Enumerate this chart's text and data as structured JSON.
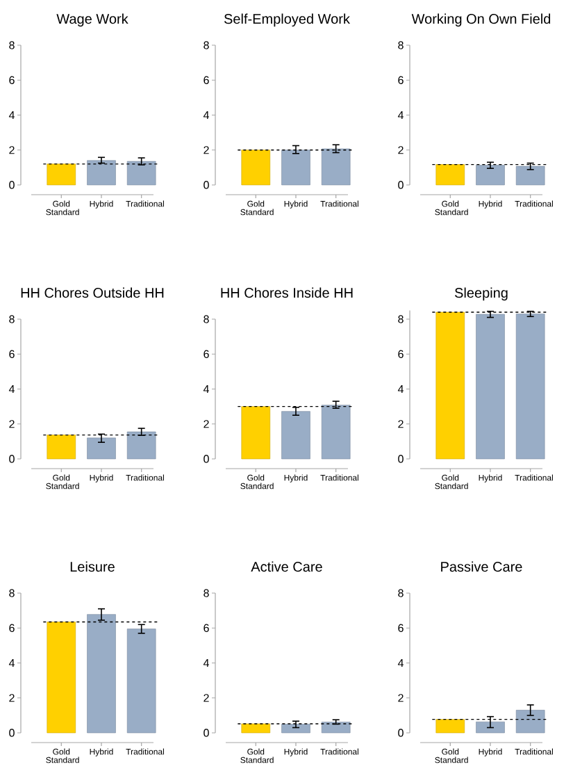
{
  "chart_data": [
    {
      "type": "bar",
      "title": "Wage Work",
      "categories": [
        "Gold Standard",
        "Hybrid",
        "Traditional"
      ],
      "values": [
        1.2,
        1.4,
        1.35
      ],
      "colors": [
        "#ffd000",
        "#99adc6",
        "#99adc6"
      ],
      "errors": [
        null,
        [
          1.25,
          1.58
        ],
        [
          1.15,
          1.55
        ]
      ],
      "ylim": [
        0,
        8
      ],
      "yticks": [
        0,
        2,
        4,
        6,
        8
      ],
      "ref_lines": [
        {
          "axis": "y",
          "value": 1.2,
          "line_style": "dashed"
        }
      ]
    },
    {
      "type": "bar",
      "title": "Self-Employed Work",
      "categories": [
        "Gold Standard",
        "Hybrid",
        "Traditional"
      ],
      "values": [
        2.0,
        2.0,
        2.07
      ],
      "colors": [
        "#ffd000",
        "#99adc6",
        "#99adc6"
      ],
      "errors": [
        null,
        [
          1.8,
          2.25
        ],
        [
          1.85,
          2.3
        ]
      ],
      "ylim": [
        0,
        8
      ],
      "yticks": [
        0,
        2,
        4,
        6,
        8
      ],
      "ref_lines": [
        {
          "axis": "y",
          "value": 2.0,
          "line_style": "dashed"
        }
      ]
    },
    {
      "type": "bar",
      "title": "Working On Own Field",
      "categories": [
        "Gold Standard",
        "Hybrid",
        "Traditional"
      ],
      "values": [
        1.17,
        1.13,
        1.07
      ],
      "colors": [
        "#ffd000",
        "#99adc6",
        "#99adc6"
      ],
      "errors": [
        null,
        [
          0.95,
          1.3
        ],
        [
          0.88,
          1.25
        ]
      ],
      "ylim": [
        0,
        8
      ],
      "yticks": [
        0,
        2,
        4,
        6,
        8
      ],
      "ref_lines": [
        {
          "axis": "y",
          "value": 1.17,
          "line_style": "dashed"
        }
      ]
    },
    {
      "type": "bar",
      "title": "HH Chores Outside HH",
      "categories": [
        "Gold Standard",
        "Hybrid",
        "Traditional"
      ],
      "values": [
        1.37,
        1.2,
        1.55
      ],
      "colors": [
        "#ffd000",
        "#99adc6",
        "#99adc6"
      ],
      "errors": [
        null,
        [
          0.95,
          1.42
        ],
        [
          1.35,
          1.75
        ]
      ],
      "ylim": [
        0,
        8
      ],
      "yticks": [
        0,
        2,
        4,
        6,
        8
      ],
      "ref_lines": [
        {
          "axis": "y",
          "value": 1.37,
          "line_style": "dashed"
        }
      ]
    },
    {
      "type": "bar",
      "title": "HH Chores Inside HH",
      "categories": [
        "Gold Standard",
        "Hybrid",
        "Traditional"
      ],
      "values": [
        3.0,
        2.72,
        3.08
      ],
      "colors": [
        "#ffd000",
        "#99adc6",
        "#99adc6"
      ],
      "errors": [
        null,
        [
          2.5,
          2.95
        ],
        [
          2.9,
          3.3
        ]
      ],
      "ylim": [
        0,
        8
      ],
      "yticks": [
        0,
        2,
        4,
        6,
        8
      ],
      "ref_lines": [
        {
          "axis": "y",
          "value": 3.0,
          "line_style": "dashed"
        }
      ]
    },
    {
      "type": "bar",
      "title": "Sleeping",
      "categories": [
        "Gold Standard",
        "Hybrid",
        "Traditional"
      ],
      "values": [
        8.4,
        8.28,
        8.3
      ],
      "colors": [
        "#ffd000",
        "#99adc6",
        "#99adc6"
      ],
      "errors": [
        null,
        [
          8.1,
          8.45
        ],
        [
          8.15,
          8.45
        ]
      ],
      "ylim": [
        0,
        8.5
      ],
      "yticks": [
        0,
        2,
        4,
        6,
        8
      ],
      "ref_lines": [
        {
          "axis": "y",
          "value": 8.4,
          "line_style": "dashed"
        }
      ]
    },
    {
      "type": "bar",
      "title": "Leisure",
      "categories": [
        "Gold Standard",
        "Hybrid",
        "Traditional"
      ],
      "values": [
        6.35,
        6.78,
        5.95
      ],
      "colors": [
        "#ffd000",
        "#99adc6",
        "#99adc6"
      ],
      "errors": [
        null,
        [
          6.45,
          7.1
        ],
        [
          5.7,
          6.2
        ]
      ],
      "ylim": [
        0,
        8
      ],
      "yticks": [
        0,
        2,
        4,
        6,
        8
      ],
      "ref_lines": [
        {
          "axis": "y",
          "value": 6.35,
          "line_style": "dashed"
        }
      ]
    },
    {
      "type": "bar",
      "title": "Active Care",
      "categories": [
        "Gold Standard",
        "Hybrid",
        "Traditional"
      ],
      "values": [
        0.52,
        0.5,
        0.62
      ],
      "colors": [
        "#ffd000",
        "#99adc6",
        "#99adc6"
      ],
      "errors": [
        null,
        [
          0.3,
          0.67
        ],
        [
          0.5,
          0.75
        ]
      ],
      "ylim": [
        0,
        8
      ],
      "yticks": [
        0,
        2,
        4,
        6,
        8
      ],
      "ref_lines": [
        {
          "axis": "y",
          "value": 0.52,
          "line_style": "dashed"
        }
      ]
    },
    {
      "type": "bar",
      "title": "Passive Care",
      "categories": [
        "Gold Standard",
        "Hybrid",
        "Traditional"
      ],
      "values": [
        0.77,
        0.63,
        1.3
      ],
      "colors": [
        "#ffd000",
        "#99adc6",
        "#99adc6"
      ],
      "errors": [
        null,
        [
          0.3,
          0.93
        ],
        [
          1.0,
          1.6
        ]
      ],
      "ylim": [
        0,
        8
      ],
      "yticks": [
        0,
        2,
        4,
        6,
        8
      ],
      "ref_lines": [
        {
          "axis": "y",
          "value": 0.77,
          "line_style": "dashed"
        }
      ]
    }
  ]
}
